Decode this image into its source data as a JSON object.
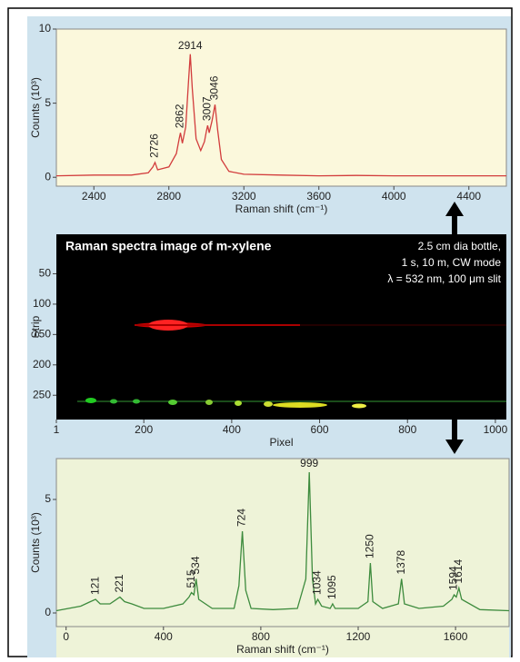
{
  "chart_data": [
    {
      "type": "line",
      "ylabel": "Counts (10³)",
      "xlabel": "Raman shift (cm⁻¹)",
      "color": "#d23c3c",
      "xlim": [
        2200,
        4600
      ],
      "ylim": [
        -0.6,
        10
      ],
      "xticks": [
        2400,
        2800,
        3200,
        3600,
        4000,
        4400
      ],
      "yticks": [
        0,
        5,
        10
      ],
      "x": [
        2200,
        2400,
        2600,
        2690,
        2715,
        2726,
        2740,
        2800,
        2840,
        2855,
        2862,
        2872,
        2890,
        2905,
        2914,
        2925,
        2945,
        2970,
        2990,
        3000,
        3007,
        3015,
        3030,
        3046,
        3060,
        3080,
        3120,
        3200,
        3400,
        3600,
        3800,
        4000,
        4200,
        4400,
        4600
      ],
      "values": [
        0.1,
        0.15,
        0.15,
        0.3,
        0.7,
        1.0,
        0.5,
        0.7,
        1.6,
        2.6,
        3.0,
        2.3,
        3.4,
        6.5,
        8.3,
        6.0,
        2.6,
        1.8,
        2.4,
        3.1,
        3.5,
        3.0,
        3.8,
        4.9,
        3.2,
        1.2,
        0.4,
        0.2,
        0.15,
        0.1,
        0.12,
        0.1,
        0.1,
        0.1,
        0.1
      ],
      "annotations": [
        {
          "x": 2726,
          "y": 1.0,
          "vertical": true
        },
        {
          "x": 2862,
          "y": 3.0,
          "vertical": true
        },
        {
          "x": 2914,
          "y": 8.3,
          "vertical": false
        },
        {
          "x": 3007,
          "y": 3.5,
          "vertical": true
        },
        {
          "x": 3046,
          "y": 4.9,
          "vertical": true
        }
      ]
    },
    {
      "type": "image",
      "title": "Raman spectra image of m-xylene",
      "notes": [
        "2.5 cm dia bottle,",
        "1 s, 10 m, CW mode",
        "λ = 532 nm, 100 μm slit"
      ],
      "ylabel": "Strip",
      "xlabel": "Pixel",
      "xlim": [
        1,
        1025
      ],
      "ylim": [
        -15,
        290
      ],
      "xticks": [
        1,
        200,
        400,
        600,
        800,
        1000
      ],
      "yticks": [
        50,
        100,
        150,
        200,
        250
      ]
    },
    {
      "type": "line",
      "ylabel": "Counts (10³)",
      "xlabel": "Raman shift (cm⁻¹)",
      "color": "#3d8b3d",
      "xlim": [
        -40,
        1820
      ],
      "ylim": [
        -0.6,
        6.8
      ],
      "xticks": [
        0,
        400,
        800,
        1200,
        1600
      ],
      "yticks": [
        0,
        5
      ],
      "x": [
        -40,
        60,
        100,
        121,
        140,
        180,
        221,
        240,
        270,
        320,
        400,
        480,
        505,
        515,
        525,
        534,
        545,
        600,
        690,
        710,
        724,
        738,
        760,
        850,
        950,
        985,
        999,
        1012,
        1025,
        1034,
        1050,
        1085,
        1095,
        1105,
        1200,
        1240,
        1250,
        1260,
        1300,
        1365,
        1378,
        1390,
        1450,
        1550,
        1585,
        1594,
        1603,
        1614,
        1625,
        1700,
        1820
      ],
      "values": [
        0.1,
        0.3,
        0.5,
        0.6,
        0.4,
        0.4,
        0.7,
        0.5,
        0.4,
        0.2,
        0.2,
        0.4,
        0.7,
        0.9,
        0.8,
        1.5,
        0.6,
        0.2,
        0.2,
        1.2,
        3.6,
        1.0,
        0.2,
        0.15,
        0.2,
        1.5,
        6.2,
        1.5,
        0.4,
        0.6,
        0.3,
        0.2,
        0.4,
        0.2,
        0.2,
        0.5,
        2.2,
        0.5,
        0.2,
        0.4,
        1.5,
        0.4,
        0.2,
        0.3,
        0.6,
        0.8,
        0.7,
        1.1,
        0.6,
        0.15,
        0.1
      ],
      "annotations": [
        {
          "x": 121,
          "y": 0.6,
          "vertical": true
        },
        {
          "x": 221,
          "y": 0.7,
          "vertical": true
        },
        {
          "x": 515,
          "y": 0.9,
          "vertical": true
        },
        {
          "x": 534,
          "y": 1.5,
          "vertical": true
        },
        {
          "x": 724,
          "y": 3.6,
          "vertical": true
        },
        {
          "x": 999,
          "y": 6.2,
          "vertical": false
        },
        {
          "x": 1034,
          "y": 0.6,
          "vertical": true
        },
        {
          "x": 1095,
          "y": 0.4,
          "vertical": true
        },
        {
          "x": 1250,
          "y": 2.2,
          "vertical": true
        },
        {
          "x": 1378,
          "y": 1.5,
          "vertical": true
        },
        {
          "x": 1594,
          "y": 0.8,
          "vertical": true
        },
        {
          "x": 1614,
          "y": 1.1,
          "vertical": true
        }
      ]
    }
  ]
}
